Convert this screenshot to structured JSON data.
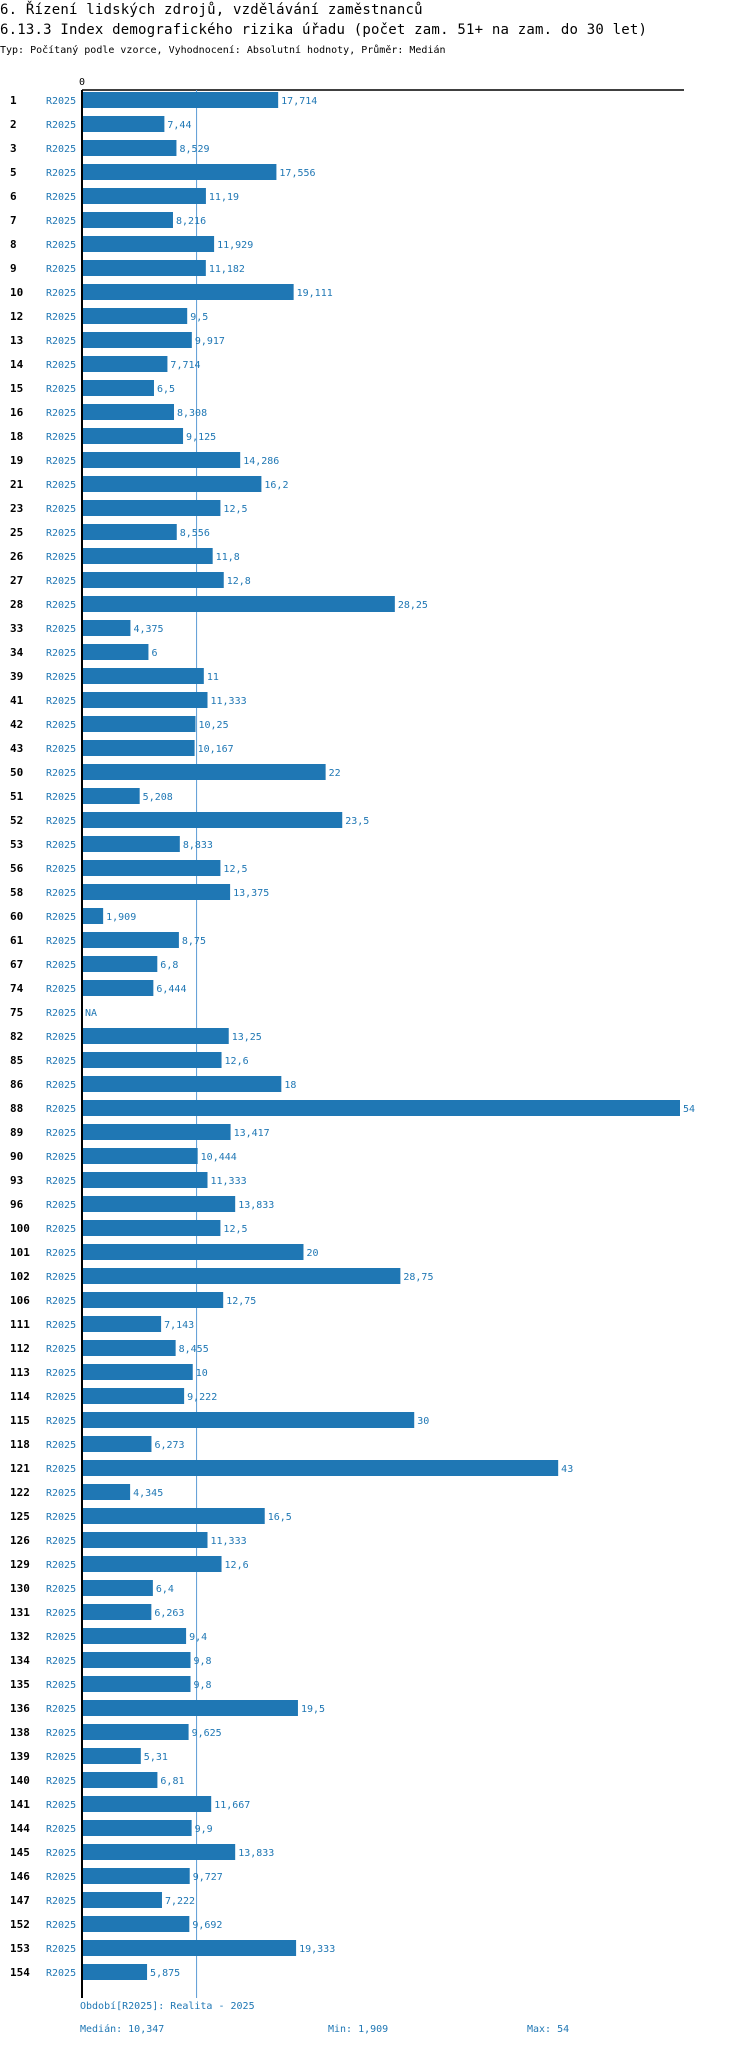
{
  "header": {
    "section_title": "6. Řízení lidských zdrojů, vzdělávání zaměstnanců",
    "chart_title": "6.13.3 Index demografického rizika úřadu (počet zam. 51+ na zam. do 30 let)",
    "subtitle": "Typ: Počítaný podle vzorce, Vyhodnocení: Absolutní hodnoty, Průměr: Medián"
  },
  "footer": {
    "period": "Období[R2025]: Realita - 2025",
    "median": "Medián: 10,347",
    "min": "Min: 1,909",
    "max": "Max: 54"
  },
  "colors": {
    "bar": "#1f77b4",
    "label": "#1f77b4",
    "axis": "#000000",
    "median_line": "#5a9bd5"
  },
  "chart_data": {
    "type": "bar",
    "orientation": "horizontal",
    "title": "6.13.3 Index demografického rizika úřadu (počet zam. 51+ na zam. do 30 let)",
    "series_label": "R2025",
    "axis_zero_label": "0",
    "xlim": [
      0,
      54
    ],
    "median": 10.347,
    "categories": [
      "1",
      "2",
      "3",
      "5",
      "6",
      "7",
      "8",
      "9",
      "10",
      "12",
      "13",
      "14",
      "15",
      "16",
      "18",
      "19",
      "21",
      "23",
      "25",
      "26",
      "27",
      "28",
      "33",
      "34",
      "39",
      "41",
      "42",
      "43",
      "50",
      "51",
      "52",
      "53",
      "56",
      "58",
      "60",
      "61",
      "67",
      "74",
      "75",
      "82",
      "85",
      "86",
      "88",
      "89",
      "90",
      "93",
      "96",
      "100",
      "101",
      "102",
      "106",
      "111",
      "112",
      "113",
      "114",
      "115",
      "118",
      "121",
      "122",
      "125",
      "126",
      "129",
      "130",
      "131",
      "132",
      "134",
      "135",
      "136",
      "138",
      "139",
      "140",
      "141",
      "144",
      "145",
      "146",
      "147",
      "152",
      "153",
      "154"
    ],
    "values": [
      17.714,
      7.44,
      8.529,
      17.556,
      11.19,
      8.216,
      11.929,
      11.182,
      19.111,
      9.5,
      9.917,
      7.714,
      6.5,
      8.308,
      9.125,
      14.286,
      16.2,
      12.5,
      8.556,
      11.8,
      12.8,
      28.25,
      4.375,
      6,
      11,
      11.333,
      10.25,
      10.167,
      22,
      5.208,
      23.5,
      8.833,
      12.5,
      13.375,
      1.909,
      8.75,
      6.8,
      6.444,
      null,
      13.25,
      12.6,
      18,
      54,
      13.417,
      10.444,
      11.333,
      13.833,
      12.5,
      20,
      28.75,
      12.75,
      7.143,
      8.455,
      10,
      9.222,
      30,
      6.273,
      43,
      4.345,
      16.5,
      11.333,
      12.6,
      6.4,
      6.263,
      9.4,
      9.8,
      9.8,
      19.5,
      9.625,
      5.31,
      6.81,
      11.667,
      9.9,
      13.833,
      9.727,
      7.222,
      9.692,
      19.333,
      5.875
    ],
    "value_labels": [
      "17,714",
      "7,44",
      "8,529",
      "17,556",
      "11,19",
      "8,216",
      "11,929",
      "11,182",
      "19,111",
      "9,5",
      "9,917",
      "7,714",
      "6,5",
      "8,308",
      "9,125",
      "14,286",
      "16,2",
      "12,5",
      "8,556",
      "11,8",
      "12,8",
      "28,25",
      "4,375",
      "6",
      "11",
      "11,333",
      "10,25",
      "10,167",
      "22",
      "5,208",
      "23,5",
      "8,833",
      "12,5",
      "13,375",
      "1,909",
      "8,75",
      "6,8",
      "6,444",
      "NA",
      "13,25",
      "12,6",
      "18",
      "54",
      "13,417",
      "10,444",
      "11,333",
      "13,833",
      "12,5",
      "20",
      "28,75",
      "12,75",
      "7,143",
      "8,455",
      "10",
      "9,222",
      "30",
      "6,273",
      "43",
      "4,345",
      "16,5",
      "11,333",
      "12,6",
      "6,4",
      "6,263",
      "9,4",
      "9,8",
      "9,8",
      "19,5",
      "9,625",
      "5,31",
      "6,81",
      "11,667",
      "9,9",
      "13,833",
      "9,727",
      "7,222",
      "9,692",
      "19,333",
      "5,875"
    ]
  }
}
